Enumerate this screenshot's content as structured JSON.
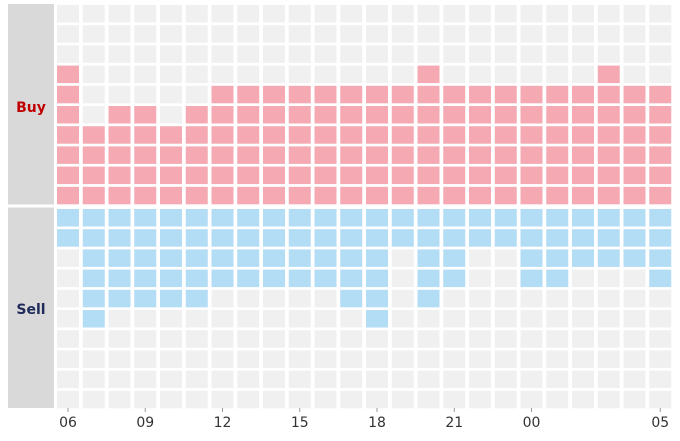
{
  "chart_data": {
    "type": "heatmap",
    "title": "",
    "buy_label": "Buy",
    "sell_label": "Sell",
    "columns": 24,
    "rows_per_side": 10,
    "x_tick_labels": [
      {
        "col": 0,
        "label": "06"
      },
      {
        "col": 3,
        "label": "09"
      },
      {
        "col": 6,
        "label": "12"
      },
      {
        "col": 9,
        "label": "15"
      },
      {
        "col": 12,
        "label": "18"
      },
      {
        "col": 15,
        "label": "21"
      },
      {
        "col": 18,
        "label": "00"
      },
      {
        "col": 23,
        "label": "05"
      }
    ],
    "buy_values": [
      7,
      4,
      5,
      5,
      4,
      5,
      6,
      6,
      6,
      6,
      6,
      6,
      6,
      6,
      7,
      6,
      6,
      6,
      6,
      6,
      6,
      7,
      6,
      6
    ],
    "sell_values": [
      2,
      6,
      5,
      5,
      5,
      5,
      4,
      4,
      4,
      4,
      4,
      5,
      6,
      2,
      5,
      4,
      2,
      2,
      4,
      4,
      3,
      3,
      3,
      4
    ],
    "colors": {
      "buy": "#f4a9b3",
      "sell": "#b3dcf5",
      "empty": "#f0f0f0",
      "side_panel": "#d9d9d9",
      "buy_text": "#c00000",
      "sell_text": "#1f2a5a"
    }
  }
}
